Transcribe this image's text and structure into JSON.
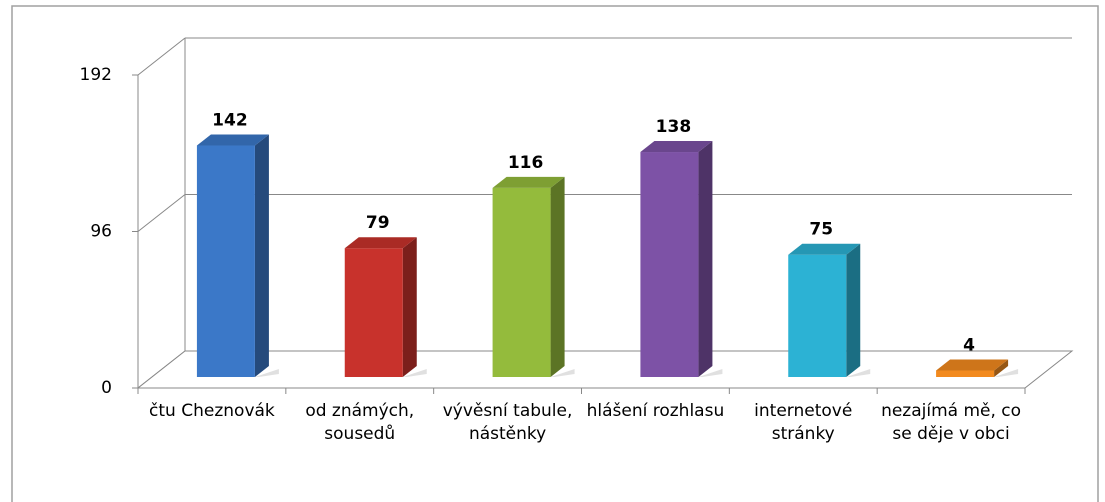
{
  "chart_data": {
    "type": "bar3d",
    "categories": [
      "čtu Cheznovák",
      "od známých, sousedů",
      "vývěsní tabule, nástěnky",
      "hlášení rozhlasu",
      "internetové stránky",
      "nezajímá mě, co se děje v obci"
    ],
    "values": [
      142,
      79,
      116,
      138,
      75,
      4
    ],
    "colors": [
      "#3b78c8",
      "#c8322c",
      "#94bb3c",
      "#7d52a6",
      "#2cb2d4",
      "#f28a1e"
    ],
    "ylim": [
      0,
      192
    ],
    "yticks": [
      0,
      96,
      192
    ],
    "grid": true
  }
}
